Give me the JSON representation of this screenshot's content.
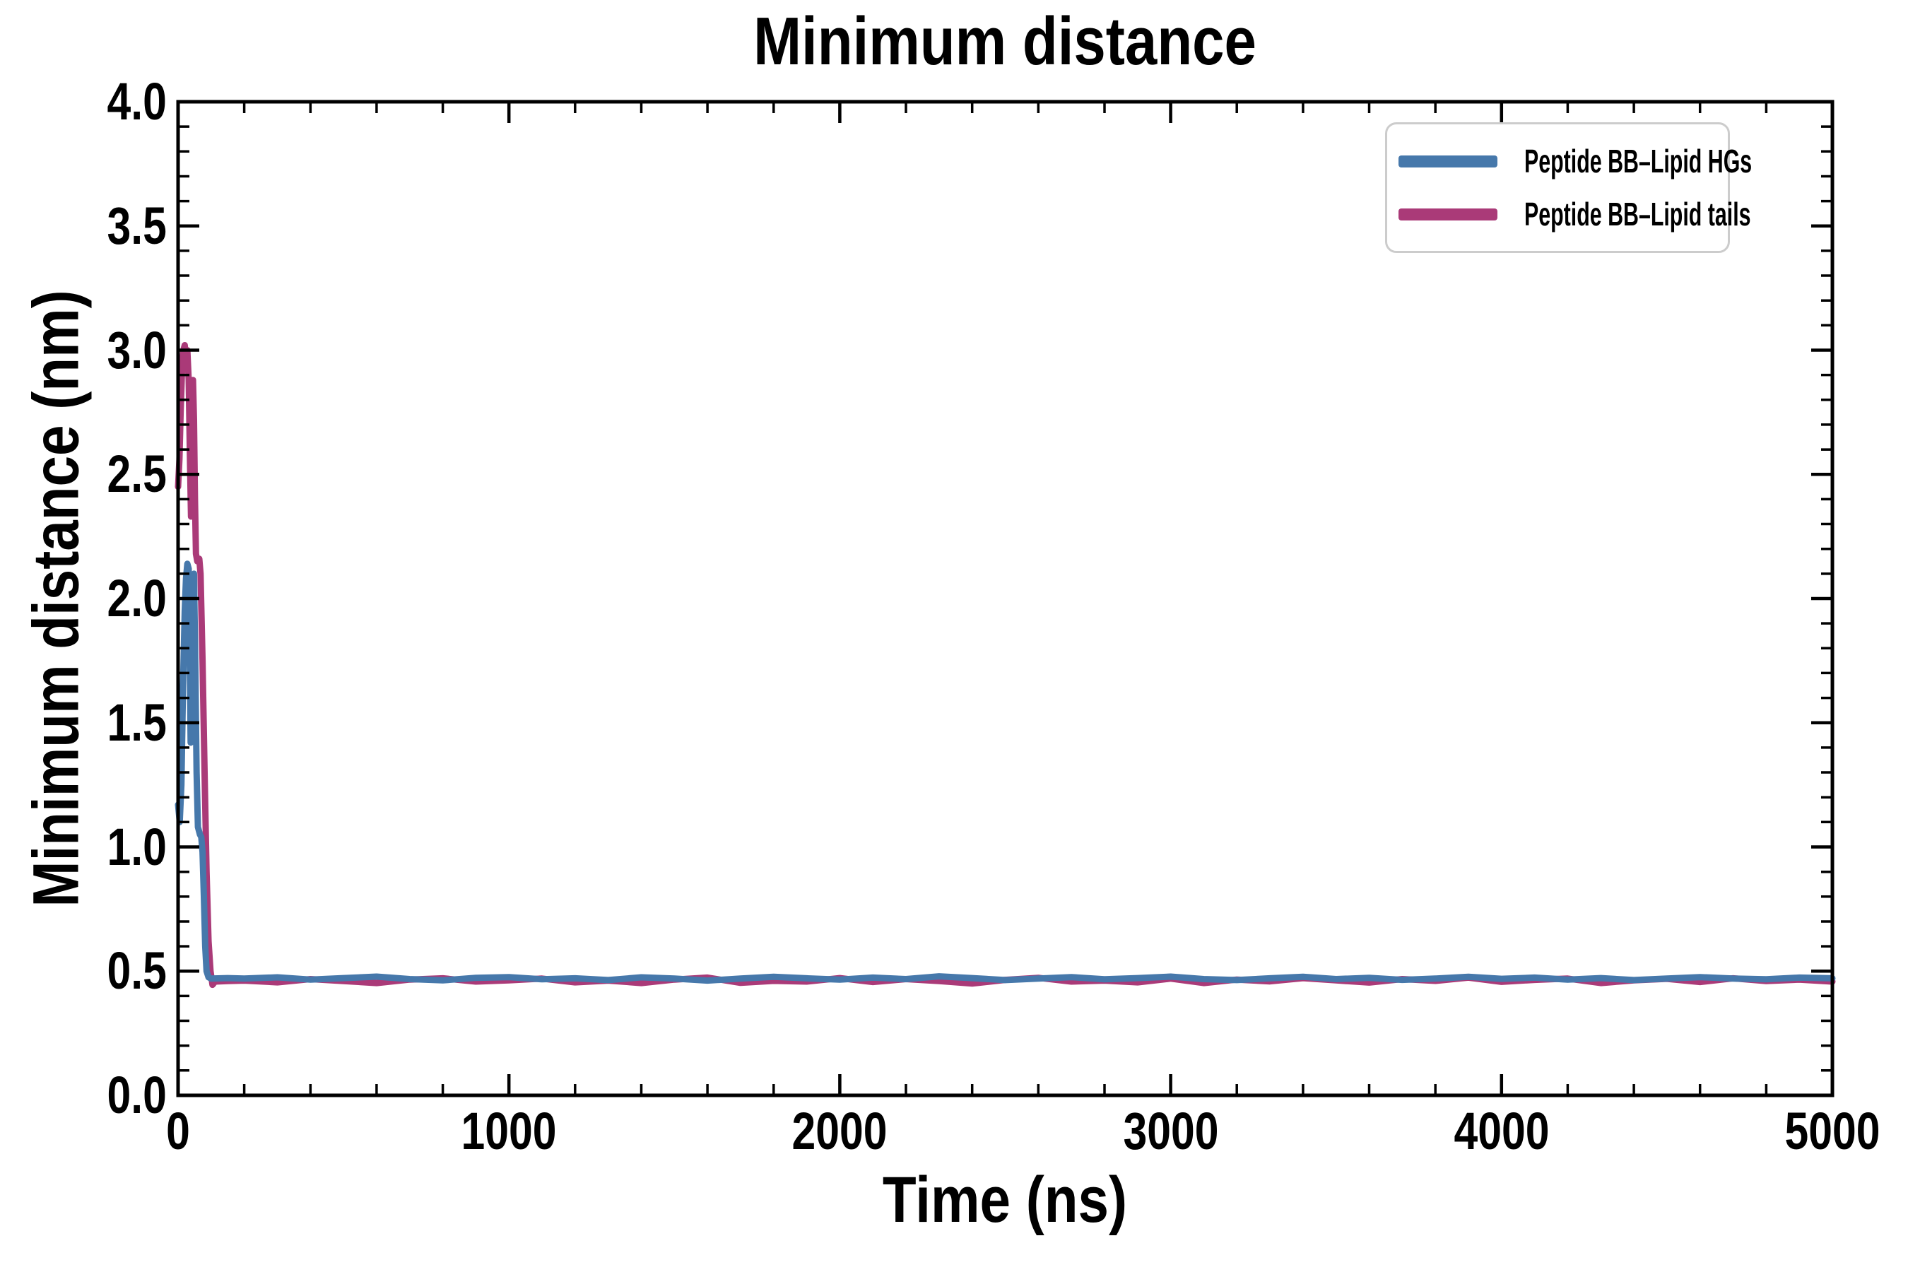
{
  "title": "Minimum distance",
  "colors": {
    "series_blue": "#4678ab",
    "series_magenta": "#aa3a78",
    "axis": "#000000",
    "legend_border": "#cccccc",
    "background": "#ffffff"
  },
  "chart_data": {
    "type": "line",
    "title": "Minimum distance",
    "xlabel": "Time (ns)",
    "ylabel": "Minimum distance (nm)",
    "xlim": [
      0,
      5000
    ],
    "ylim": [
      0.0,
      4.0
    ],
    "grid": false,
    "tick_direction": "in",
    "frame": "all-four-sides",
    "legend_position": "upper right",
    "x_ticks": {
      "major_step": 1000,
      "minor_step": 200
    },
    "y_ticks": {
      "major_step": 0.5,
      "minor_step": 0.1
    },
    "x_tick_labels": [
      "0",
      "1000",
      "2000",
      "3000",
      "4000",
      "5000"
    ],
    "y_tick_labels": [
      "0.0",
      "0.5",
      "1.0",
      "1.5",
      "2.0",
      "2.5",
      "3.0",
      "3.5",
      "4.0"
    ],
    "series": [
      {
        "name": "Peptide BB–Lipid HGs",
        "color": "#4678ab",
        "points": [
          [
            0,
            1.17
          ],
          [
            5,
            1.1
          ],
          [
            10,
            1.25
          ],
          [
            15,
            1.65
          ],
          [
            20,
            1.95
          ],
          [
            24,
            2.08
          ],
          [
            28,
            2.14
          ],
          [
            32,
            2.12
          ],
          [
            35,
            1.8
          ],
          [
            38,
            1.42
          ],
          [
            41,
            1.85
          ],
          [
            44,
            2.08
          ],
          [
            48,
            2.1
          ],
          [
            52,
            1.75
          ],
          [
            56,
            1.3
          ],
          [
            60,
            1.08
          ],
          [
            66,
            1.05
          ],
          [
            70,
            1.04
          ],
          [
            74,
            0.98
          ],
          [
            78,
            0.8
          ],
          [
            82,
            0.6
          ],
          [
            86,
            0.5
          ],
          [
            92,
            0.475
          ],
          [
            100,
            0.47
          ],
          [
            150,
            0.472
          ],
          [
            200,
            0.47
          ],
          [
            300,
            0.475
          ],
          [
            400,
            0.466
          ],
          [
            500,
            0.472
          ],
          [
            600,
            0.478
          ],
          [
            700,
            0.468
          ],
          [
            800,
            0.463
          ],
          [
            900,
            0.473
          ],
          [
            1000,
            0.476
          ],
          [
            1100,
            0.467
          ],
          [
            1200,
            0.471
          ],
          [
            1300,
            0.464
          ],
          [
            1400,
            0.475
          ],
          [
            1500,
            0.47
          ],
          [
            1600,
            0.462
          ],
          [
            1700,
            0.47
          ],
          [
            1800,
            0.477
          ],
          [
            1900,
            0.471
          ],
          [
            2000,
            0.466
          ],
          [
            2100,
            0.474
          ],
          [
            2200,
            0.468
          ],
          [
            2300,
            0.479
          ],
          [
            2400,
            0.472
          ],
          [
            2500,
            0.464
          ],
          [
            2600,
            0.47
          ],
          [
            2700,
            0.476
          ],
          [
            2800,
            0.467
          ],
          [
            2900,
            0.472
          ],
          [
            3000,
            0.478
          ],
          [
            3100,
            0.468
          ],
          [
            3200,
            0.464
          ],
          [
            3300,
            0.471
          ],
          [
            3400,
            0.477
          ],
          [
            3500,
            0.468
          ],
          [
            3600,
            0.473
          ],
          [
            3700,
            0.465
          ],
          [
            3800,
            0.47
          ],
          [
            3900,
            0.477
          ],
          [
            4000,
            0.469
          ],
          [
            4100,
            0.474
          ],
          [
            4200,
            0.466
          ],
          [
            4300,
            0.472
          ],
          [
            4400,
            0.464
          ],
          [
            4500,
            0.47
          ],
          [
            4600,
            0.476
          ],
          [
            4700,
            0.47
          ],
          [
            4800,
            0.467
          ],
          [
            4900,
            0.474
          ],
          [
            5000,
            0.471
          ]
        ]
      },
      {
        "name": "Peptide BB–Lipid tails",
        "color": "#aa3a78",
        "points": [
          [
            0,
            2.45
          ],
          [
            4,
            2.56
          ],
          [
            8,
            2.76
          ],
          [
            12,
            2.92
          ],
          [
            16,
            3.0
          ],
          [
            20,
            3.02
          ],
          [
            24,
            2.97
          ],
          [
            28,
            3.0
          ],
          [
            32,
            2.88
          ],
          [
            36,
            2.55
          ],
          [
            39,
            2.33
          ],
          [
            42,
            2.7
          ],
          [
            45,
            2.88
          ],
          [
            48,
            2.72
          ],
          [
            51,
            2.4
          ],
          [
            54,
            2.18
          ],
          [
            58,
            2.15
          ],
          [
            64,
            2.16
          ],
          [
            68,
            2.1
          ],
          [
            74,
            1.75
          ],
          [
            80,
            1.3
          ],
          [
            86,
            0.9
          ],
          [
            92,
            0.62
          ],
          [
            98,
            0.5
          ],
          [
            104,
            0.445
          ],
          [
            112,
            0.458
          ],
          [
            150,
            0.46
          ],
          [
            200,
            0.462
          ],
          [
            300,
            0.455
          ],
          [
            400,
            0.468
          ],
          [
            500,
            0.46
          ],
          [
            600,
            0.452
          ],
          [
            700,
            0.466
          ],
          [
            800,
            0.471
          ],
          [
            900,
            0.458
          ],
          [
            1000,
            0.463
          ],
          [
            1100,
            0.47
          ],
          [
            1200,
            0.455
          ],
          [
            1300,
            0.462
          ],
          [
            1400,
            0.452
          ],
          [
            1500,
            0.466
          ],
          [
            1600,
            0.474
          ],
          [
            1700,
            0.453
          ],
          [
            1800,
            0.461
          ],
          [
            1900,
            0.458
          ],
          [
            2000,
            0.472
          ],
          [
            2100,
            0.456
          ],
          [
            2200,
            0.468
          ],
          [
            2300,
            0.46
          ],
          [
            2400,
            0.45
          ],
          [
            2500,
            0.465
          ],
          [
            2600,
            0.473
          ],
          [
            2700,
            0.458
          ],
          [
            2800,
            0.462
          ],
          [
            2900,
            0.455
          ],
          [
            3000,
            0.47
          ],
          [
            3100,
            0.452
          ],
          [
            3200,
            0.466
          ],
          [
            3300,
            0.459
          ],
          [
            3400,
            0.472
          ],
          [
            3500,
            0.463
          ],
          [
            3600,
            0.454
          ],
          [
            3700,
            0.468
          ],
          [
            3800,
            0.461
          ],
          [
            3900,
            0.474
          ],
          [
            4000,
            0.457
          ],
          [
            4100,
            0.465
          ],
          [
            4200,
            0.47
          ],
          [
            4300,
            0.452
          ],
          [
            4400,
            0.463
          ],
          [
            4500,
            0.469
          ],
          [
            4600,
            0.456
          ],
          [
            4700,
            0.471
          ],
          [
            4800,
            0.46
          ],
          [
            4900,
            0.466
          ],
          [
            5000,
            0.458
          ]
        ]
      }
    ]
  },
  "legend": {
    "items": [
      {
        "label": "Peptide BB–Lipid HGs"
      },
      {
        "label": "Peptide BB–Lipid tails"
      }
    ]
  }
}
